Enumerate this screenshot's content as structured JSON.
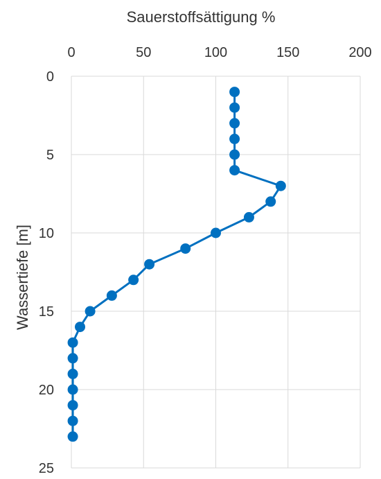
{
  "chart_data": {
    "type": "line",
    "title": "",
    "xlabel": "Sauerstoffsättigung %",
    "ylabel": "Wassertiefe [m]",
    "x_axis_position": "top",
    "y_axis_reversed": true,
    "xlim": [
      0,
      200
    ],
    "ylim": [
      0,
      25
    ],
    "x_ticks": [
      0,
      50,
      100,
      150,
      200
    ],
    "y_ticks": [
      0,
      5,
      10,
      15,
      20,
      25
    ],
    "grid": true,
    "legend": "none",
    "series": [
      {
        "color": "#0070C0",
        "marker": "circle",
        "points": [
          {
            "x": 113,
            "y": 1
          },
          {
            "x": 113,
            "y": 2
          },
          {
            "x": 113,
            "y": 3
          },
          {
            "x": 113,
            "y": 4
          },
          {
            "x": 113,
            "y": 5
          },
          {
            "x": 113,
            "y": 6
          },
          {
            "x": 145,
            "y": 7
          },
          {
            "x": 138,
            "y": 8
          },
          {
            "x": 123,
            "y": 9
          },
          {
            "x": 100,
            "y": 10
          },
          {
            "x": 79,
            "y": 11
          },
          {
            "x": 54,
            "y": 12
          },
          {
            "x": 43,
            "y": 13
          },
          {
            "x": 28,
            "y": 14
          },
          {
            "x": 13,
            "y": 15
          },
          {
            "x": 6,
            "y": 16
          },
          {
            "x": 1,
            "y": 17
          },
          {
            "x": 1,
            "y": 18
          },
          {
            "x": 1,
            "y": 19
          },
          {
            "x": 1,
            "y": 20
          },
          {
            "x": 1,
            "y": 21
          },
          {
            "x": 1,
            "y": 22
          },
          {
            "x": 1,
            "y": 23
          }
        ]
      }
    ]
  }
}
